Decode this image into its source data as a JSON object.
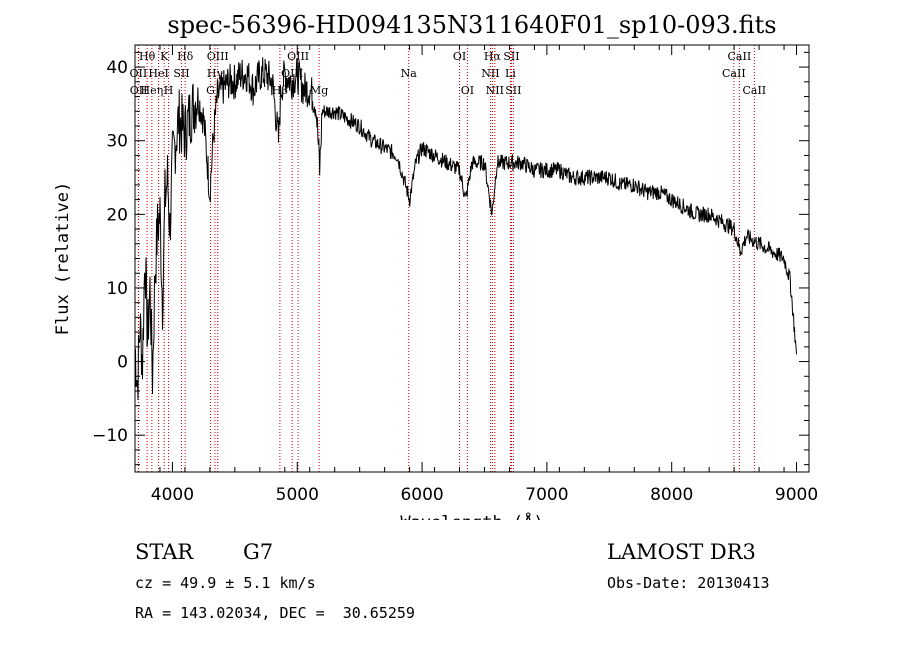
{
  "chart_data": {
    "type": "line",
    "title": "spec-56396-HD094135N311640F01_sp10-093.fits",
    "xlabel": "Wavelength (Å)",
    "ylabel": "Flux (relative)",
    "xlim": [
      3700,
      9100
    ],
    "ylim": [
      -15,
      43
    ],
    "xticks": [
      4000,
      5000,
      6000,
      7000,
      8000,
      9000
    ],
    "yticks": [
      -10,
      0,
      10,
      20,
      30,
      40
    ],
    "series": [
      {
        "name": "spectrum",
        "x": [
          3700,
          3720,
          3740,
          3760,
          3780,
          3800,
          3820,
          3840,
          3860,
          3880,
          3900,
          3920,
          3940,
          3960,
          3980,
          4000,
          4050,
          4100,
          4150,
          4200,
          4250,
          4300,
          4330,
          4360,
          4400,
          4450,
          4500,
          4550,
          4600,
          4650,
          4700,
          4750,
          4800,
          4850,
          4870,
          4900,
          4950,
          5000,
          5050,
          5100,
          5150,
          5180,
          5200,
          5300,
          5400,
          5500,
          5600,
          5700,
          5800,
          5900,
          5950,
          6000,
          6100,
          6200,
          6300,
          6350,
          6400,
          6500,
          6560,
          6600,
          6700,
          6800,
          6900,
          7000,
          7100,
          7200,
          7300,
          7400,
          7500,
          7600,
          7700,
          7800,
          7900,
          8000,
          8100,
          8200,
          8300,
          8400,
          8500,
          8550,
          8600,
          8700,
          8800,
          8900,
          8950,
          8980,
          9000
        ],
        "y": [
          2,
          -3,
          5,
          0,
          15,
          3,
          10,
          -2,
          12,
          18,
          20,
          8,
          22,
          25,
          18,
          27,
          33,
          31,
          34,
          36,
          33,
          23,
          31,
          36,
          37,
          38,
          38,
          39,
          39,
          37,
          39,
          39,
          38,
          30,
          37,
          39,
          38,
          39,
          37,
          37,
          35,
          26,
          34,
          34,
          33,
          32,
          30,
          29,
          28,
          22,
          27,
          29,
          28,
          27,
          26,
          22,
          27,
          27,
          20,
          27,
          27,
          27,
          26,
          26,
          26,
          25,
          25,
          25,
          25,
          24,
          24,
          23,
          23,
          22,
          21,
          20,
          20,
          19,
          18,
          15,
          17,
          16,
          15,
          14,
          11,
          5,
          1
        ]
      }
    ],
    "line_markers": [
      {
        "label": "Hθ",
        "x": 3797,
        "row": 0
      },
      {
        "label": "OII",
        "x": 3727,
        "row": 1
      },
      {
        "label": "OII",
        "x": 3729,
        "row": 2
      },
      {
        "label": "Heη",
        "x": 3835,
        "row": 2
      },
      {
        "label": "K",
        "x": 3934,
        "row": 0
      },
      {
        "label": "HeI",
        "x": 3889,
        "row": 1
      },
      {
        "label": "H",
        "x": 3969,
        "row": 2
      },
      {
        "label": "SII",
        "x": 4072,
        "row": 1
      },
      {
        "label": "Hδ",
        "x": 4102,
        "row": 0
      },
      {
        "label": "OIII",
        "x": 4363,
        "row": 0
      },
      {
        "label": "Hγ",
        "x": 4341,
        "row": 1
      },
      {
        "label": "G",
        "x": 4305,
        "row": 2
      },
      {
        "label": "Hβ",
        "x": 4861,
        "row": 2
      },
      {
        "label": "OIII",
        "x": 5007,
        "row": 0
      },
      {
        "label": "OIII",
        "x": 4959,
        "row": 1
      },
      {
        "label": "Mg",
        "x": 5175,
        "row": 2
      },
      {
        "label": "Na",
        "x": 5893,
        "row": 1
      },
      {
        "label": "OI",
        "x": 6300,
        "row": 0
      },
      {
        "label": "OI",
        "x": 6363,
        "row": 2
      },
      {
        "label": "Hα",
        "x": 6563,
        "row": 0
      },
      {
        "label": "NII",
        "x": 6548,
        "row": 1
      },
      {
        "label": "NII",
        "x": 6583,
        "row": 2
      },
      {
        "label": "SII",
        "x": 6716,
        "row": 0
      },
      {
        "label": "Li",
        "x": 6708,
        "row": 1
      },
      {
        "label": "SII",
        "x": 6731,
        "row": 2
      },
      {
        "label": "CaII",
        "x": 8542,
        "row": 0
      },
      {
        "label": "CaII",
        "x": 8498,
        "row": 1
      },
      {
        "label": "CaII",
        "x": 8662,
        "row": 2
      }
    ],
    "marker_color": "#cc0000",
    "line_color": "#000000"
  },
  "info": {
    "object_class": "STAR",
    "subclass": "G7",
    "survey": "LAMOST DR3",
    "redshift": "cz = 49.9 ± 5.1 km/s",
    "obs_date": "Obs-Date: 20130413",
    "coords": "RA = 143.02034, DEC =  30.65259"
  }
}
